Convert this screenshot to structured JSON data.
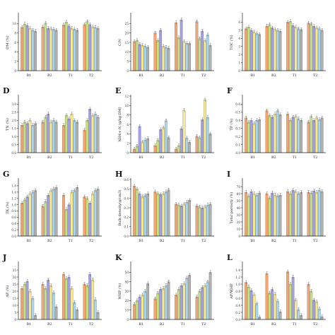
{
  "figure": {
    "series_colors": [
      "#f4a470",
      "#c8e27e",
      "#a3a0e8",
      "#f8e98c",
      "#a8d8ef",
      "#b0b0b0"
    ]
  },
  "chart_data": [
    {
      "panel": "",
      "type": "bar",
      "ylabel": "OM (%)",
      "categories": [
        "B1",
        "B2",
        "T1",
        "T2"
      ],
      "ylim": [
        0,
        12
      ],
      "yticks": [
        0,
        2,
        4,
        6,
        8,
        10
      ],
      "series": [
        {
          "values": [
            9.2,
            9.3,
            9.7,
            9.8
          ]
        },
        {
          "values": [
            9.9,
            10.1,
            10.3,
            10.4
          ]
        },
        {
          "values": [
            9.6,
            9.0,
            9.5,
            9.8
          ]
        },
        {
          "values": [
            9.0,
            8.9,
            9.0,
            9.3
          ]
        },
        {
          "values": [
            8.6,
            8.8,
            8.8,
            9.2
          ]
        },
        {
          "values": [
            8.4,
            8.6,
            8.6,
            9.0
          ]
        }
      ]
    },
    {
      "panel": "",
      "type": "bar",
      "ylabel": "C/N",
      "categories": [
        "B1",
        "B2",
        "T1",
        "T2"
      ],
      "ylim": [
        0,
        30
      ],
      "yticks": [
        0,
        5,
        10,
        15,
        20,
        25
      ],
      "series": [
        {
          "values": [
            15.5,
            20.0,
            25.5,
            26.0
          ]
        },
        {
          "values": [
            16.0,
            16.0,
            17.5,
            17.0
          ]
        },
        {
          "values": [
            14.0,
            21.5,
            27.0,
            21.0
          ]
        },
        {
          "values": [
            13.5,
            13.0,
            15.5,
            16.0
          ]
        },
        {
          "values": [
            13.0,
            12.5,
            14.5,
            19.0
          ]
        },
        {
          "values": [
            12.5,
            12.0,
            14.5,
            13.5
          ]
        }
      ]
    },
    {
      "panel": "",
      "type": "bar",
      "ylabel": "TOC (%)",
      "categories": [
        "B1",
        "B2",
        "T1",
        "T2"
      ],
      "ylim": [
        0,
        7
      ],
      "yticks": [
        0,
        1,
        2,
        3,
        4,
        5,
        6
      ],
      "series": [
        {
          "values": [
            5.2,
            5.5,
            6.0,
            5.9
          ]
        },
        {
          "values": [
            5.4,
            5.7,
            6.1,
            5.8
          ]
        },
        {
          "values": [
            5.0,
            5.3,
            5.6,
            5.5
          ]
        },
        {
          "values": [
            4.8,
            5.1,
            5.4,
            5.3
          ]
        },
        {
          "values": [
            4.6,
            5.0,
            5.2,
            5.2
          ]
        },
        {
          "values": [
            4.5,
            4.9,
            5.1,
            5.0
          ]
        }
      ]
    },
    {
      "panel": "D",
      "type": "bar",
      "ylabel": "TN (%)",
      "categories": [
        "B1",
        "B2",
        "T1",
        "T2"
      ],
      "ylim": [
        0,
        3.5
      ],
      "yticks": [
        0,
        0.5,
        1.0,
        1.5,
        2.0,
        2.5,
        3.0
      ],
      "series": [
        {
          "values": [
            1.7,
            1.9,
            1.7,
            1.4
          ]
        },
        {
          "values": [
            1.9,
            2.2,
            2.3,
            2.0
          ]
        },
        {
          "values": [
            1.8,
            2.4,
            2.1,
            2.7
          ]
        },
        {
          "values": [
            2.0,
            1.9,
            2.4,
            2.3
          ]
        },
        {
          "values": [
            1.7,
            2.0,
            2.0,
            2.4
          ]
        },
        {
          "values": [
            1.8,
            1.9,
            1.9,
            2.2
          ]
        }
      ]
    },
    {
      "panel": "E",
      "type": "bar",
      "ylabel": "NH4+-N (g/kg DM)",
      "categories": [
        "B1",
        "B2",
        "T1",
        "T2"
      ],
      "ylim": [
        0,
        12
      ],
      "yticks": [
        0,
        2,
        4,
        6,
        8,
        10,
        12
      ],
      "series": [
        {
          "values": [
            0.8,
            1.5,
            0.8,
            3.5
          ]
        },
        {
          "values": [
            1.4,
            2.6,
            1.5,
            3.2
          ]
        },
        {
          "values": [
            5.6,
            4.9,
            5.1,
            7.0
          ]
        },
        {
          "values": [
            2.3,
            5.3,
            9.0,
            11.2
          ]
        },
        {
          "values": [
            2.7,
            6.8,
            3.1,
            7.5
          ]
        },
        {
          "values": [
            3.0,
            3.2,
            2.2,
            4.0
          ]
        }
      ]
    },
    {
      "panel": "F",
      "type": "bar",
      "ylabel": "TP (%)",
      "categories": [
        "B1",
        "B2",
        "T1",
        "T2"
      ],
      "ylim": [
        0,
        0.7
      ],
      "yticks": [
        0,
        0.1,
        0.2,
        0.3,
        0.4,
        0.5,
        0.6
      ],
      "series": [
        {
          "values": [
            0.43,
            0.52,
            0.48,
            0.38
          ]
        },
        {
          "values": [
            0.38,
            0.46,
            0.4,
            0.45
          ]
        },
        {
          "values": [
            0.4,
            0.44,
            0.44,
            0.4
          ]
        },
        {
          "values": [
            0.36,
            0.48,
            0.45,
            0.43
          ]
        },
        {
          "values": [
            0.4,
            0.52,
            0.42,
            0.41
          ]
        },
        {
          "values": [
            0.41,
            0.47,
            0.4,
            0.43
          ]
        }
      ]
    },
    {
      "panel": "G",
      "type": "bar",
      "ylabel": "TK (%)",
      "categories": [
        "B1",
        "B2",
        "T1",
        "T2"
      ],
      "ylim": [
        0,
        1.8
      ],
      "yticks": [
        0,
        0.2,
        0.4,
        0.6,
        0.8,
        1.0,
        1.2,
        1.4,
        1.6
      ],
      "series": [
        {
          "values": [
            1.05,
            0.95,
            1.3,
            1.25
          ]
        },
        {
          "values": [
            1.15,
            1.1,
            0.85,
            1.2
          ]
        },
        {
          "values": [
            1.25,
            1.3,
            1.0,
            1.05
          ]
        },
        {
          "values": [
            1.35,
            1.45,
            1.4,
            1.35
          ]
        },
        {
          "values": [
            1.4,
            1.5,
            1.45,
            1.45
          ]
        },
        {
          "values": [
            1.45,
            1.55,
            1.55,
            1.5
          ]
        }
      ]
    },
    {
      "panel": "H",
      "type": "bar",
      "ylabel": "Bulk density(g/cm3)",
      "categories": [
        "B1",
        "B2",
        "T1",
        "T2"
      ],
      "ylim": [
        0,
        0.6
      ],
      "yticks": [
        0,
        0.1,
        0.2,
        0.3,
        0.4,
        0.5,
        0.6
      ],
      "series": [
        {
          "values": [
            0.53,
            0.47,
            0.34,
            0.32
          ]
        },
        {
          "values": [
            0.5,
            0.45,
            0.33,
            0.31
          ]
        },
        {
          "values": [
            0.45,
            0.44,
            0.32,
            0.3
          ]
        },
        {
          "values": [
            0.42,
            0.45,
            0.34,
            0.31
          ]
        },
        {
          "values": [
            0.43,
            0.47,
            0.36,
            0.33
          ]
        },
        {
          "values": [
            0.45,
            0.49,
            0.38,
            0.34
          ]
        }
      ]
    },
    {
      "panel": "I",
      "type": "bar",
      "ylabel": "Total porosity (%)",
      "categories": [
        "B1",
        "B2",
        "T1",
        "T2"
      ],
      "ylim": [
        0,
        80
      ],
      "yticks": [
        0,
        10,
        20,
        30,
        40,
        50,
        60,
        70
      ],
      "series": [
        {
          "values": [
            62,
            60,
            63,
            62
          ]
        },
        {
          "values": [
            57,
            54,
            60,
            61
          ]
        },
        {
          "values": [
            63,
            61,
            65,
            64
          ]
        },
        {
          "values": [
            60,
            58,
            63,
            62
          ]
        },
        {
          "values": [
            58,
            57,
            60,
            65
          ]
        },
        {
          "values": [
            61,
            58,
            62,
            63
          ]
        }
      ]
    },
    {
      "panel": "J",
      "type": "bar",
      "ylabel": "AP (%)",
      "categories": [
        "B1",
        "B2",
        "T1",
        "T2"
      ],
      "ylim": [
        0,
        40
      ],
      "yticks": [
        0,
        5,
        10,
        15,
        20,
        25,
        30,
        35
      ],
      "series": [
        {
          "values": [
            22,
            25,
            32,
            25
          ]
        },
        {
          "values": [
            25,
            22,
            29,
            24
          ]
        },
        {
          "values": [
            27,
            28,
            30,
            32
          ]
        },
        {
          "values": [
            20,
            24,
            22,
            28
          ]
        },
        {
          "values": [
            15,
            19,
            12,
            14
          ]
        },
        {
          "values": [
            3,
            9,
            7,
            5
          ]
        }
      ]
    },
    {
      "panel": "K",
      "type": "bar",
      "ylabel": "WHP (%)",
      "categories": [
        "B1",
        "B2",
        "T1",
        "T2"
      ],
      "ylim": [
        0,
        60
      ],
      "yticks": [
        0,
        10,
        20,
        30,
        40,
        50
      ],
      "series": [
        {
          "values": [
            16,
            22,
            26,
            24
          ]
        },
        {
          "values": [
            20,
            28,
            32,
            30
          ]
        },
        {
          "values": [
            24,
            32,
            36,
            34
          ]
        },
        {
          "values": [
            26,
            33,
            38,
            36
          ]
        },
        {
          "values": [
            30,
            36,
            44,
            40
          ]
        },
        {
          "values": [
            38,
            40,
            47,
            50
          ]
        }
      ]
    },
    {
      "panel": "L",
      "type": "bar",
      "ylabel": "AP/WHP",
      "categories": [
        "B1",
        "B2",
        "T1",
        "T2"
      ],
      "ylim": [
        0,
        1.6
      ],
      "yticks": [
        0,
        0.2,
        0.4,
        0.6,
        0.8,
        1.0,
        1.2,
        1.4
      ],
      "series": [
        {
          "values": [
            1.05,
            1.3,
            1.35,
            1.0
          ]
        },
        {
          "values": [
            0.92,
            0.75,
            1.0,
            0.8
          ]
        },
        {
          "values": [
            0.82,
            0.85,
            1.2,
            0.55
          ]
        },
        {
          "values": [
            0.7,
            0.72,
            0.55,
            0.5
          ]
        },
        {
          "values": [
            0.45,
            0.52,
            0.28,
            0.3
          ]
        },
        {
          "values": [
            0.07,
            0.22,
            0.12,
            0.08
          ]
        }
      ]
    }
  ]
}
